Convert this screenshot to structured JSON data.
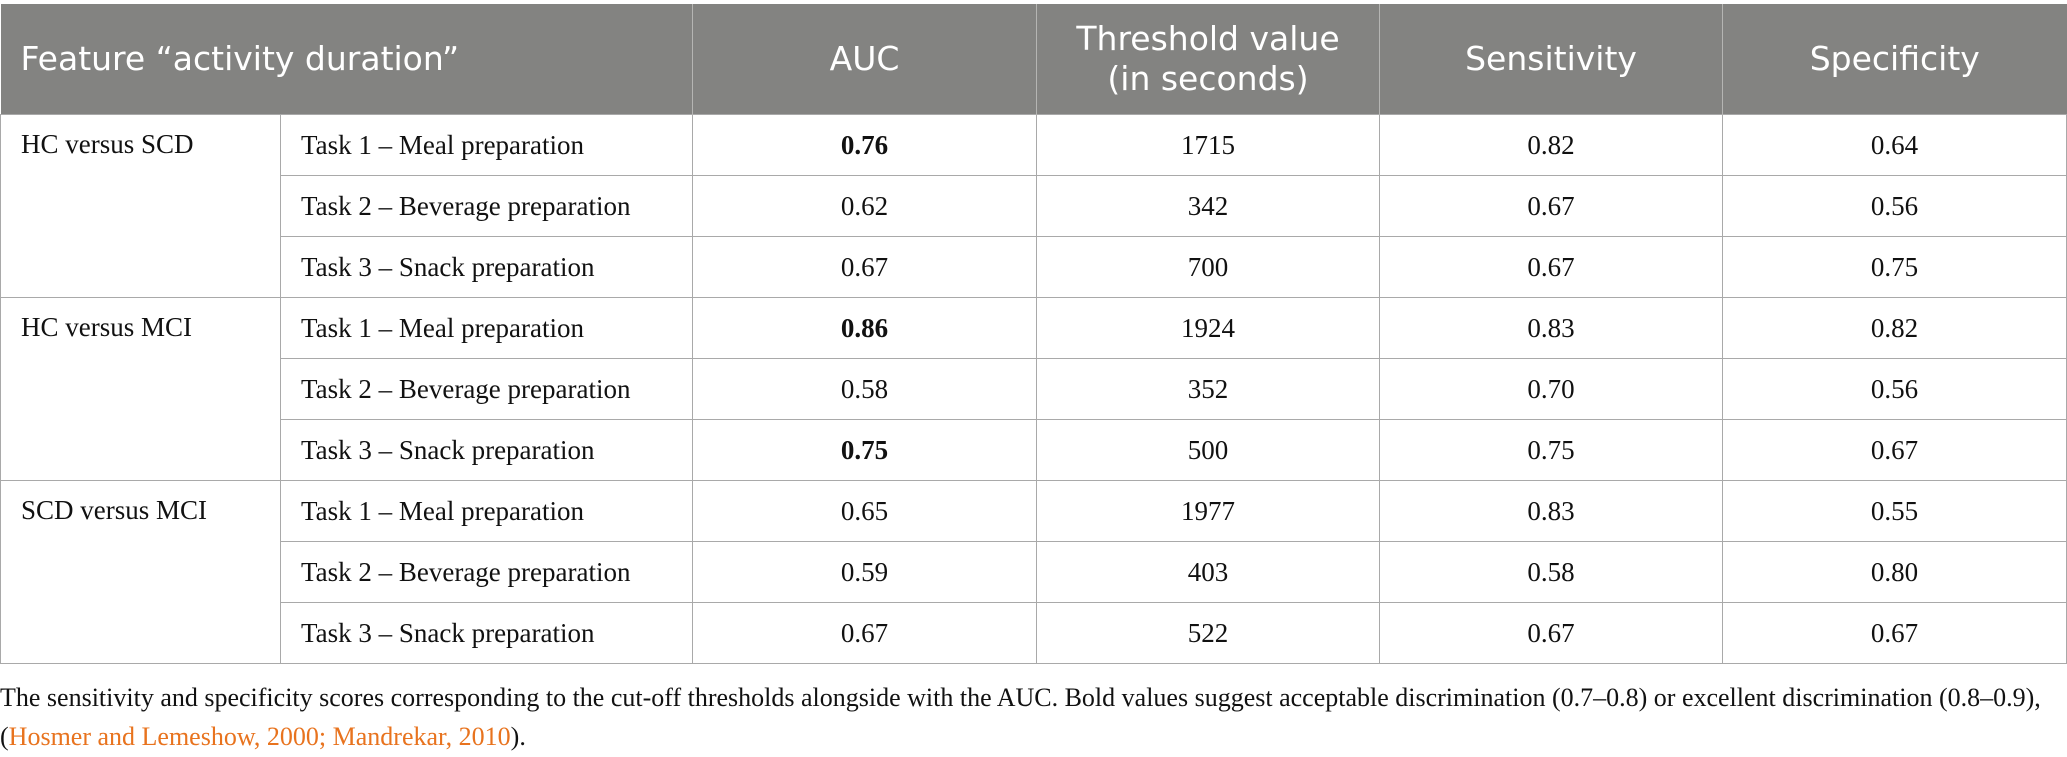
{
  "table": {
    "headers": {
      "feature": "Feature “activity duration”",
      "auc": "AUC",
      "threshold_line1": "Threshold value",
      "threshold_line2": "(in seconds)",
      "sensitivity": "Sensitivity",
      "specificity": "Specificity"
    },
    "groups": [
      {
        "label": "HC versus SCD",
        "rows": [
          {
            "task": "Task 1 – Meal preparation",
            "auc": "0.76",
            "auc_bold": true,
            "threshold": "1715",
            "sensitivity": "0.82",
            "specificity": "0.64"
          },
          {
            "task": "Task 2 – Beverage preparation",
            "auc": "0.62",
            "auc_bold": false,
            "threshold": "342",
            "sensitivity": "0.67",
            "specificity": "0.56"
          },
          {
            "task": "Task 3 – Snack preparation",
            "auc": "0.67",
            "auc_bold": false,
            "threshold": "700",
            "sensitivity": "0.67",
            "specificity": "0.75"
          }
        ]
      },
      {
        "label": "HC versus MCI",
        "rows": [
          {
            "task": "Task 1 – Meal preparation",
            "auc": "0.86",
            "auc_bold": true,
            "threshold": "1924",
            "sensitivity": "0.83",
            "specificity": "0.82"
          },
          {
            "task": "Task 2 – Beverage preparation",
            "auc": "0.58",
            "auc_bold": false,
            "threshold": "352",
            "sensitivity": "0.70",
            "specificity": "0.56"
          },
          {
            "task": "Task 3 – Snack preparation",
            "auc": "0.75",
            "auc_bold": true,
            "threshold": "500",
            "sensitivity": "0.75",
            "specificity": "0.67"
          }
        ]
      },
      {
        "label": "SCD versus MCI",
        "rows": [
          {
            "task": "Task 1 – Meal preparation",
            "auc": "0.65",
            "auc_bold": false,
            "threshold": "1977",
            "sensitivity": "0.83",
            "specificity": "0.55"
          },
          {
            "task": "Task 2 – Beverage preparation",
            "auc": "0.59",
            "auc_bold": false,
            "threshold": "403",
            "sensitivity": "0.58",
            "specificity": "0.80"
          },
          {
            "task": "Task 3 – Snack preparation",
            "auc": "0.67",
            "auc_bold": false,
            "threshold": "522",
            "sensitivity": "0.67",
            "specificity": "0.67"
          }
        ]
      }
    ]
  },
  "caption": {
    "text_before": "The sensitivity and specificity scores corresponding to the cut-off thresholds alongside with the AUC. Bold values suggest acceptable discrimination (0.7–0.8) or excellent discrimination (0.8–0.9), (",
    "citation": "Hosmer and Lemeshow, 2000; Mandrekar, 2010",
    "text_after": ").",
    "citation_color": "#e8731e"
  },
  "colors": {
    "header_bg": "#838381",
    "header_text": "#ffffff",
    "border": "#a9a9a9"
  }
}
